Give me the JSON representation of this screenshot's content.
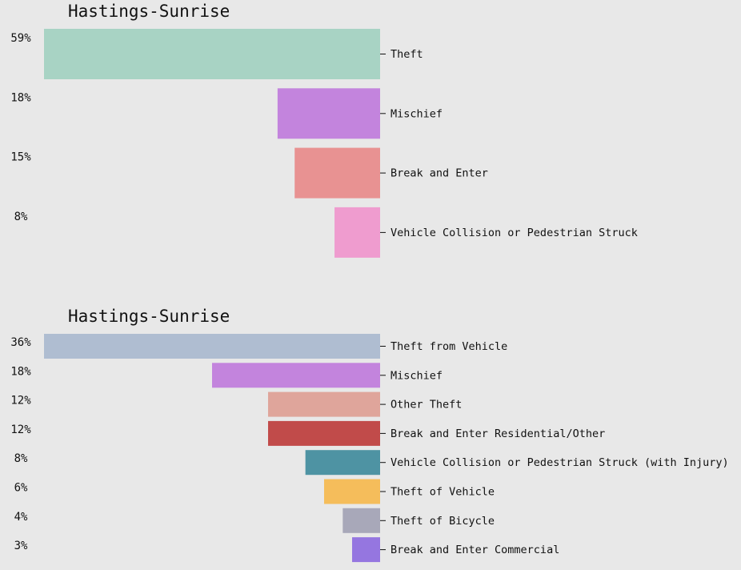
{
  "chart_data": [
    {
      "type": "bar",
      "orientation": "horizontal",
      "title": "Hastings-Sunrise",
      "categories": [
        "Theft",
        "Mischief",
        "Break and Enter",
        "Vehicle Collision or Pedestrian Struck"
      ],
      "values": [
        59,
        18,
        15,
        8
      ],
      "value_labels": [
        "59%",
        "18%",
        "15%",
        "8%"
      ],
      "colors": [
        "#a8d3c4",
        "#c384dd",
        "#e89292",
        "#ef9ccf"
      ],
      "unit": "%",
      "xlim": [
        0,
        59
      ],
      "grid": false,
      "legend": "none"
    },
    {
      "type": "bar",
      "orientation": "horizontal",
      "title": "Hastings-Sunrise",
      "categories": [
        "Theft from Vehicle",
        "Mischief",
        "Other Theft",
        "Break and Enter Residential/Other",
        "Vehicle Collision or Pedestrian Struck (with Injury)",
        "Theft of Vehicle",
        "Theft of Bicycle",
        "Break and Enter Commercial"
      ],
      "values": [
        36,
        18,
        12,
        12,
        8,
        6,
        4,
        3
      ],
      "value_labels": [
        "36%",
        "18%",
        "12%",
        "12%",
        "8%",
        "6%",
        "4%",
        "3%"
      ],
      "colors": [
        "#afbdd1",
        "#c384dd",
        "#dfa59b",
        "#c14b4a",
        "#4e93a3",
        "#f5bd5b",
        "#a8a8b9",
        "#9576e0"
      ],
      "unit": "%",
      "xlim": [
        0,
        36
      ],
      "grid": false,
      "legend": "none"
    }
  ]
}
